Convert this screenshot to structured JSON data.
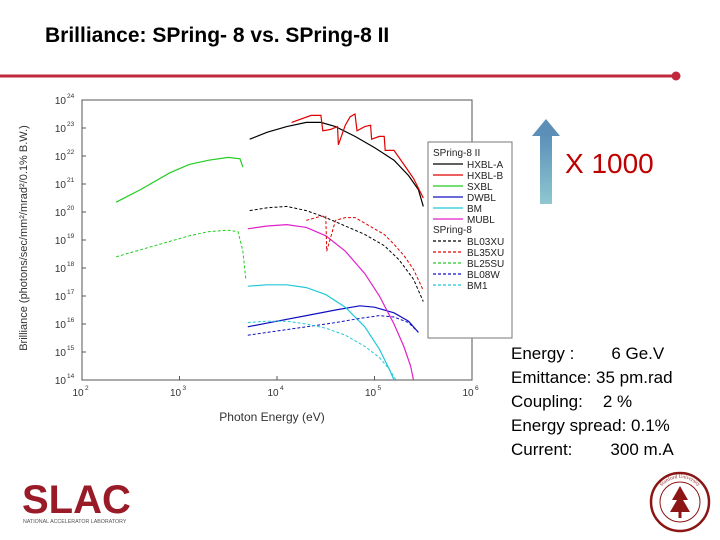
{
  "slide": {
    "title": "Brilliance:  SPring- 8 vs. SPring-8 II",
    "accent_color": "#c0283c"
  },
  "improvement": {
    "label": "X 1000",
    "color": "#c00000"
  },
  "parameters": [
    {
      "label": "Energy :",
      "value": "6 Ge.V"
    },
    {
      "label": "Emittance:",
      "value": "35 pm.rad"
    },
    {
      "label": "Coupling:",
      "value": "2 %"
    },
    {
      "label": "Energy spread:",
      "value": "0.1%"
    },
    {
      "label": "Current:",
      "value": "300 m.A"
    }
  ],
  "logo": {
    "text": "SLAC",
    "subtitle": "NATIONAL ACCELERATOR LABORATORY"
  },
  "seal": {
    "text": "Stanford University"
  },
  "chart_data": {
    "type": "line",
    "title": "",
    "xlabel": "Photon Energy (eV)",
    "ylabel": "Brilliance (photons/sec/mm²/mrad²/0.1% B.W.)",
    "xscale": "log",
    "yscale": "log",
    "x_exp_range": [
      2,
      6
    ],
    "y_exp_range": [
      14,
      24
    ],
    "x_tick_exponents": [
      2,
      3,
      4,
      5,
      6
    ],
    "y_tick_exponents": [
      14,
      15,
      16,
      17,
      18,
      19,
      20,
      21,
      22,
      23,
      24
    ],
    "legend_position": "right",
    "legend_groups": [
      {
        "title": "SPring-8 II",
        "entries": [
          {
            "name": "HXBL-A",
            "color": "#000000",
            "dash": "solid"
          },
          {
            "name": "HXBL-B",
            "color": "#e00000",
            "dash": "solid"
          },
          {
            "name": "SXBL",
            "color": "#22cc22",
            "dash": "solid"
          },
          {
            "name": "DWBL",
            "color": "#1010c0",
            "dash": "solid"
          },
          {
            "name": "BM",
            "color": "#22c8d8",
            "dash": "solid"
          },
          {
            "name": "MUBL",
            "color": "#e020c8",
            "dash": "solid"
          }
        ]
      },
      {
        "title": "SPring-8",
        "entries": [
          {
            "name": "BL03XU",
            "color": "#000000",
            "dash": "dashed"
          },
          {
            "name": "BL35XU",
            "color": "#e00000",
            "dash": "dashed"
          },
          {
            "name": "BL25SU",
            "color": "#22cc22",
            "dash": "dashed"
          },
          {
            "name": "BL08W",
            "color": "#1010c0",
            "dash": "dashed"
          },
          {
            "name": "BM1",
            "color": "#22c8d8",
            "dash": "dashed"
          }
        ]
      }
    ],
    "series": [
      {
        "name": "SPring-8 II HXBL-A",
        "color": "#000000",
        "dash": "solid",
        "points": [
          [
            3.72,
            22.6
          ],
          [
            3.9,
            22.85
          ],
          [
            4.1,
            23.05
          ],
          [
            4.3,
            23.2
          ],
          [
            4.45,
            23.2
          ],
          [
            4.6,
            23.05
          ],
          [
            4.8,
            22.7
          ],
          [
            5.0,
            22.3
          ],
          [
            5.2,
            21.85
          ],
          [
            5.35,
            21.3
          ],
          [
            5.45,
            20.8
          ],
          [
            5.5,
            20.2
          ]
        ]
      },
      {
        "name": "SPring-8 II HXBL-B",
        "color": "#e00000",
        "dash": "solid",
        "points": [
          [
            4.15,
            23.2
          ],
          [
            4.35,
            23.45
          ],
          [
            4.45,
            23.45
          ],
          [
            4.47,
            22.9
          ],
          [
            4.55,
            22.95
          ],
          [
            4.62,
            23.05
          ],
          [
            4.63,
            22.4
          ],
          [
            4.7,
            23.1
          ],
          [
            4.75,
            23.4
          ],
          [
            4.8,
            23.5
          ],
          [
            4.82,
            22.9
          ],
          [
            4.9,
            23.05
          ],
          [
            4.96,
            23.1
          ],
          [
            4.97,
            22.6
          ],
          [
            5.05,
            22.7
          ],
          [
            5.1,
            22.7
          ],
          [
            5.11,
            22.2
          ],
          [
            5.2,
            22.2
          ],
          [
            5.3,
            21.7
          ],
          [
            5.4,
            21.2
          ],
          [
            5.5,
            20.5
          ]
        ]
      },
      {
        "name": "SPring-8 II SXBL",
        "color": "#22cc22",
        "dash": "solid",
        "points": [
          [
            2.35,
            20.35
          ],
          [
            2.6,
            20.8
          ],
          [
            2.9,
            21.4
          ],
          [
            3.1,
            21.7
          ],
          [
            3.3,
            21.85
          ],
          [
            3.5,
            21.95
          ],
          [
            3.62,
            21.9
          ],
          [
            3.65,
            21.6
          ]
        ]
      },
      {
        "name": "SPring-8 II DWBL",
        "color": "#1010c0",
        "dash": "solid",
        "points": [
          [
            3.7,
            15.9
          ],
          [
            4.0,
            16.1
          ],
          [
            4.3,
            16.3
          ],
          [
            4.6,
            16.5
          ],
          [
            4.85,
            16.65
          ],
          [
            5.0,
            16.6
          ],
          [
            5.2,
            16.4
          ],
          [
            5.35,
            16.1
          ],
          [
            5.45,
            15.7
          ]
        ]
      },
      {
        "name": "SPring-8 II BM",
        "color": "#22c8d8",
        "dash": "solid",
        "points": [
          [
            3.7,
            17.35
          ],
          [
            3.9,
            17.4
          ],
          [
            4.1,
            17.4
          ],
          [
            4.3,
            17.3
          ],
          [
            4.5,
            17.05
          ],
          [
            4.7,
            16.6
          ],
          [
            4.9,
            15.9
          ],
          [
            5.05,
            15.1
          ],
          [
            5.15,
            14.4
          ],
          [
            5.2,
            14.0
          ]
        ]
      },
      {
        "name": "SPring-8 II MUBL",
        "color": "#e020c8",
        "dash": "solid",
        "points": [
          [
            3.7,
            19.4
          ],
          [
            3.9,
            19.5
          ],
          [
            4.1,
            19.55
          ],
          [
            4.3,
            19.45
          ],
          [
            4.5,
            19.15
          ],
          [
            4.7,
            18.6
          ],
          [
            4.9,
            17.8
          ],
          [
            5.05,
            17.0
          ],
          [
            5.2,
            16.0
          ],
          [
            5.3,
            15.2
          ],
          [
            5.37,
            14.5
          ],
          [
            5.4,
            14.0
          ]
        ]
      },
      {
        "name": "SPring-8 BL03XU",
        "color": "#000000",
        "dash": "dashed",
        "points": [
          [
            3.72,
            20.05
          ],
          [
            3.9,
            20.15
          ],
          [
            4.1,
            20.2
          ],
          [
            4.3,
            20.05
          ],
          [
            4.5,
            19.8
          ],
          [
            4.7,
            19.5
          ],
          [
            4.9,
            19.2
          ],
          [
            5.1,
            18.8
          ],
          [
            5.25,
            18.3
          ],
          [
            5.4,
            17.6
          ],
          [
            5.5,
            16.8
          ]
        ]
      },
      {
        "name": "SPring-8 BL35XU",
        "color": "#e00000",
        "dash": "dashed",
        "points": [
          [
            4.3,
            19.7
          ],
          [
            4.45,
            19.85
          ],
          [
            4.5,
            19.85
          ],
          [
            4.51,
            18.6
          ],
          [
            4.6,
            19.7
          ],
          [
            4.7,
            19.8
          ],
          [
            4.8,
            19.8
          ],
          [
            4.9,
            19.6
          ],
          [
            5.0,
            19.4
          ],
          [
            5.1,
            19.2
          ],
          [
            5.2,
            18.85
          ],
          [
            5.3,
            18.45
          ],
          [
            5.4,
            17.95
          ],
          [
            5.5,
            17.2
          ]
        ]
      },
      {
        "name": "SPring-8 BL25SU",
        "color": "#22cc22",
        "dash": "dashed",
        "points": [
          [
            2.35,
            18.4
          ],
          [
            2.6,
            18.65
          ],
          [
            2.9,
            18.95
          ],
          [
            3.1,
            19.15
          ],
          [
            3.3,
            19.3
          ],
          [
            3.5,
            19.35
          ],
          [
            3.6,
            19.3
          ],
          [
            3.65,
            18.6
          ],
          [
            3.68,
            17.6
          ]
        ]
      },
      {
        "name": "SPring-8 BL08W",
        "color": "#1010c0",
        "dash": "dashed",
        "points": [
          [
            3.7,
            15.6
          ],
          [
            4.0,
            15.75
          ],
          [
            4.3,
            15.9
          ],
          [
            4.6,
            16.05
          ],
          [
            4.85,
            16.2
          ],
          [
            5.05,
            16.3
          ],
          [
            5.2,
            16.25
          ],
          [
            5.35,
            16.05
          ],
          [
            5.45,
            15.7
          ]
        ]
      },
      {
        "name": "SPring-8 BM1",
        "color": "#22c8d8",
        "dash": "dashed",
        "points": [
          [
            3.7,
            16.05
          ],
          [
            3.9,
            16.1
          ],
          [
            4.1,
            16.1
          ],
          [
            4.3,
            16.0
          ],
          [
            4.5,
            15.85
          ],
          [
            4.7,
            15.6
          ],
          [
            4.9,
            15.2
          ],
          [
            5.05,
            14.8
          ],
          [
            5.15,
            14.4
          ],
          [
            5.22,
            14.0
          ]
        ]
      }
    ]
  }
}
